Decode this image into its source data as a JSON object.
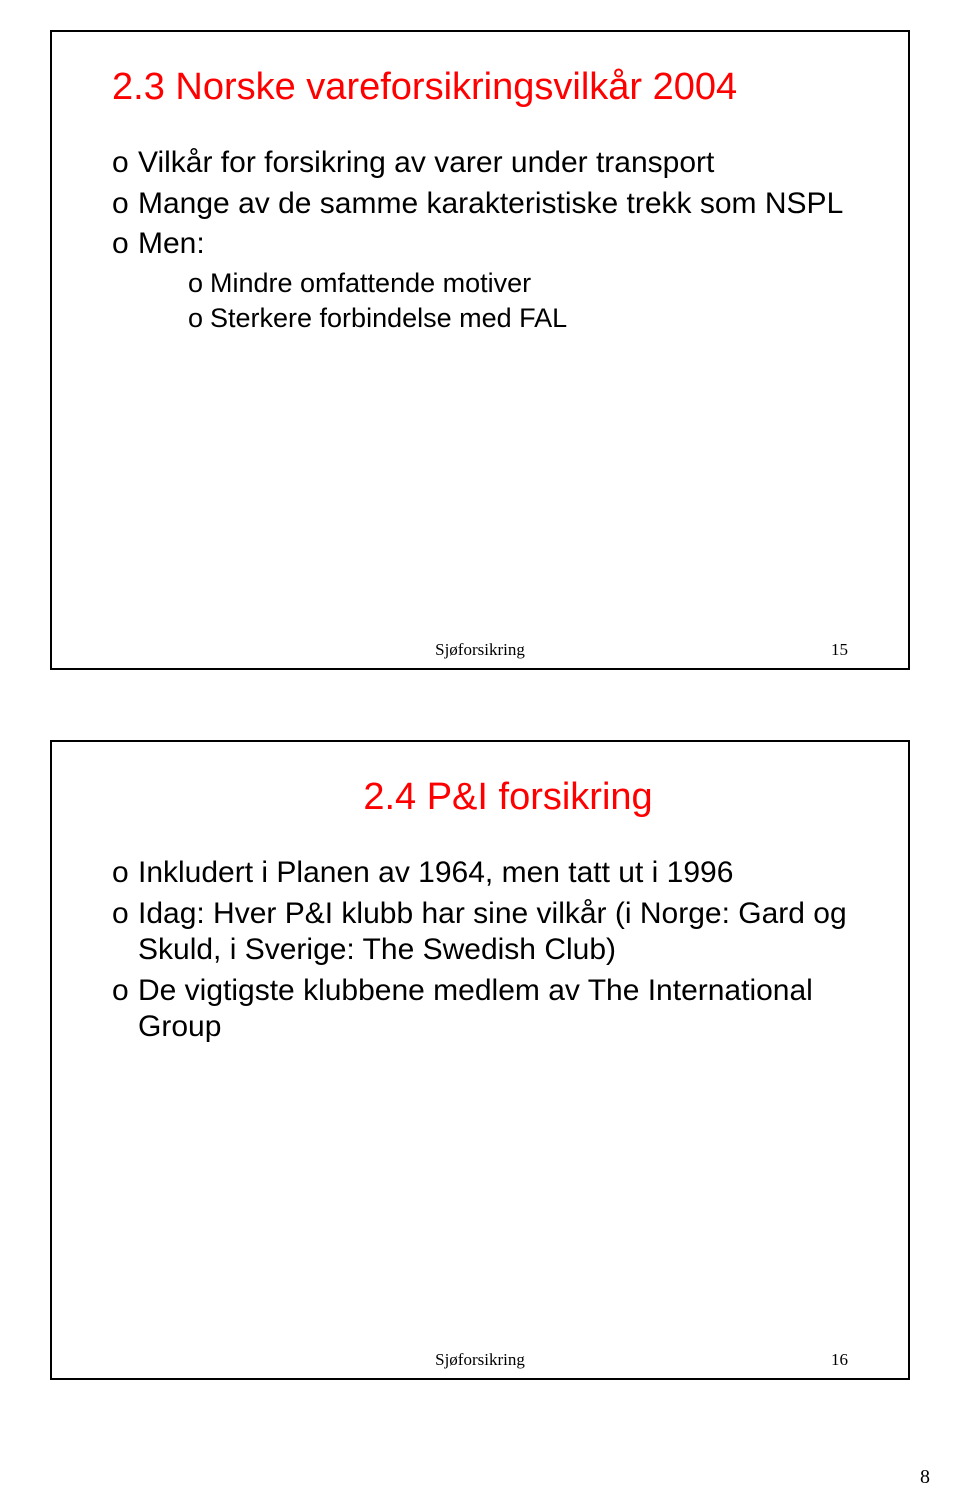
{
  "slides": [
    {
      "title": "2.3 Norske vareforsikringsvilkår 2004",
      "title_color": "#ff0000",
      "bullets": [
        {
          "text": "Vilkår for forsikring av varer under transport"
        },
        {
          "text": "Mange av de samme karakteristiske trekk som NSPL"
        },
        {
          "text": "Men:",
          "sub": [
            "Mindre omfattende motiver",
            "Sterkere forbindelse med FAL"
          ]
        }
      ],
      "footer_label": "Sjøforsikring",
      "footer_num": "15"
    },
    {
      "title": "2.4  P&I forsikring",
      "title_color": "#ff0000",
      "bullets": [
        {
          "text": "Inkludert i Planen av 1964, men tatt ut i 1996"
        },
        {
          "text": "Idag: Hver P&I klubb har sine vilkår (i Norge: Gard og Skuld, i Sverige: The Swedish Club)"
        },
        {
          "text": "De vigtigste klubbene medlem av  The International Group"
        }
      ],
      "footer_label": "Sjøforsikring",
      "footer_num": "16"
    }
  ],
  "page_number": "8",
  "colors": {
    "title": "#ff0000",
    "text": "#000000",
    "background": "#ffffff",
    "border": "#000000"
  }
}
